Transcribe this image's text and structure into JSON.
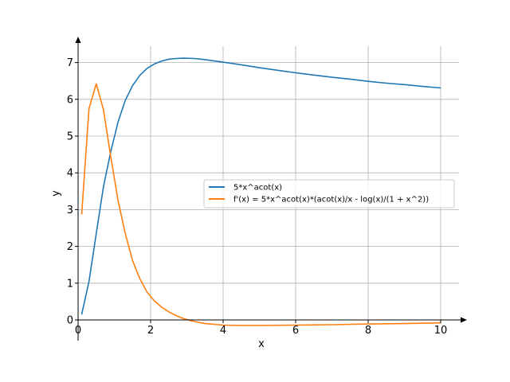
{
  "chart_data": {
    "type": "line",
    "title": "",
    "xlabel": "x",
    "ylabel": "y",
    "xlim": [
      0,
      10.5
    ],
    "ylim": [
      0,
      7.5
    ],
    "grid": true,
    "legend_position": "center-right",
    "x_ticks": [
      0,
      2,
      4,
      6,
      8,
      10
    ],
    "y_ticks": [
      0,
      1,
      2,
      3,
      4,
      5,
      6,
      7
    ],
    "series": [
      {
        "name": "5*x^acot(x)",
        "color": "#1f77b4",
        "x": [
          0.1,
          0.3,
          0.5,
          0.7,
          0.9,
          1.1,
          1.3,
          1.5,
          1.7,
          1.9,
          2.1,
          2.3,
          2.5,
          2.7,
          2.9,
          3.2,
          3.5,
          4.0,
          4.5,
          5.0,
          5.5,
          6.0,
          6.5,
          7.0,
          7.5,
          8.0,
          8.5,
          9.0,
          9.5,
          10.0
        ],
        "y": [
          0.15,
          1.05,
          2.35,
          3.62,
          4.57,
          5.38,
          5.97,
          6.37,
          6.65,
          6.84,
          6.96,
          7.04,
          7.09,
          7.11,
          7.12,
          7.11,
          7.08,
          7.01,
          6.94,
          6.86,
          6.79,
          6.72,
          6.66,
          6.6,
          6.55,
          6.49,
          6.44,
          6.4,
          6.35,
          6.31
        ]
      },
      {
        "name": "f'(x) = 5*x^acot(x)*(acot(x)/x - log(x)/(1 + x^2))",
        "color": "#ff7f0e",
        "x": [
          0.1,
          0.3,
          0.5,
          0.7,
          0.9,
          1.1,
          1.3,
          1.5,
          1.7,
          1.9,
          2.1,
          2.3,
          2.5,
          2.7,
          2.9,
          3.1,
          3.5,
          4.0,
          4.5,
          5.0,
          6.0,
          7.0,
          8.0,
          9.0,
          10.0
        ],
        "y": [
          2.87,
          5.75,
          6.42,
          5.72,
          4.45,
          3.25,
          2.35,
          1.62,
          1.13,
          0.76,
          0.52,
          0.35,
          0.22,
          0.12,
          0.04,
          -0.02,
          -0.1,
          -0.14,
          -0.15,
          -0.15,
          -0.14,
          -0.13,
          -0.11,
          -0.1,
          -0.08
        ]
      }
    ]
  }
}
